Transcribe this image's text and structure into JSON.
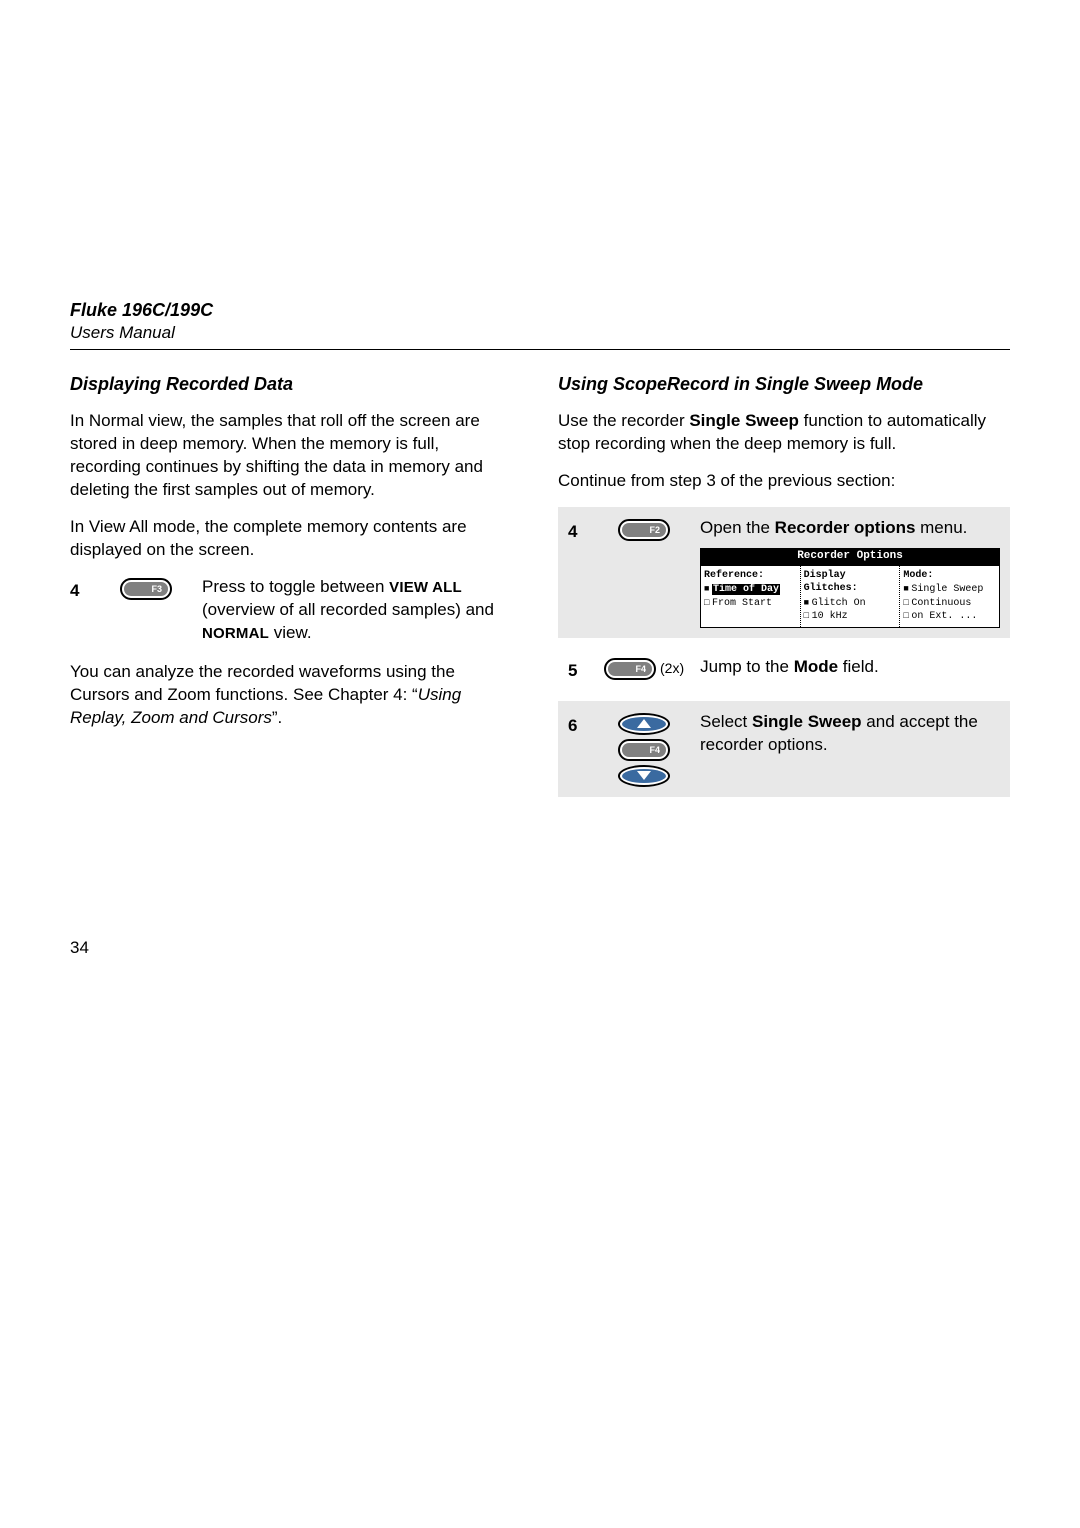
{
  "header": {
    "model": "Fluke 196C/199C",
    "sub": "Users Manual"
  },
  "left": {
    "title": "Displaying Recorded Data",
    "p1": "In Normal view, the samples that roll off the screen are stored in deep memory. When the memory is full, recording continues by shifting the data in memory and deleting the first samples out of memory.",
    "p2": "In View All mode, the complete memory contents are displayed on the screen.",
    "step4": {
      "num": "4",
      "btn": "F3",
      "pre": "Press to toggle between ",
      "sc1": "VIEW ALL",
      "mid": " (overview of all recorded samples) and ",
      "sc2": "NORMAL",
      "post": " view."
    },
    "p3_pre": "You can analyze the recorded waveforms using the Cursors and Zoom functions. See Chapter 4: “",
    "p3_it": "Using Replay, Zoom and Cursors",
    "p3_post": "”."
  },
  "right": {
    "title": "Using ScopeRecord in Single Sweep Mode",
    "p1_pre": "Use the recorder ",
    "p1_b": "Single Sweep",
    "p1_post": " function to automatically stop recording when the deep memory is full.",
    "p2": "Continue from step 3 of the previous section:",
    "step4": {
      "num": "4",
      "btn": "F2",
      "pre": "Open the ",
      "b": "Recorder options",
      "post": " menu."
    },
    "recOpt": {
      "title": "Recorder Options",
      "c1_head": "Reference:",
      "c1_i1": "Time of Day",
      "c1_i2": "From Start",
      "c2_head": "Display Glitches:",
      "c2_i1": "Glitch On",
      "c2_i2": "10 kHz",
      "c3_head": "Mode:",
      "c3_i1": "Single Sweep",
      "c3_i2": "Continuous",
      "c3_i3": "on Ext. ..."
    },
    "step5": {
      "num": "5",
      "btn": "F4",
      "x2": "(2x)",
      "pre": "Jump to the ",
      "b": "Mode",
      "post": " field."
    },
    "step6": {
      "num": "6",
      "btn": "F4",
      "pre": "Select ",
      "b": "Single Sweep",
      "post": " and accept the recorder options."
    }
  },
  "pageNumber": "34",
  "colors": {
    "btn_fill": "#808080",
    "arrow_fill": "#3a6aa0",
    "shade": "#e8e8e8"
  }
}
